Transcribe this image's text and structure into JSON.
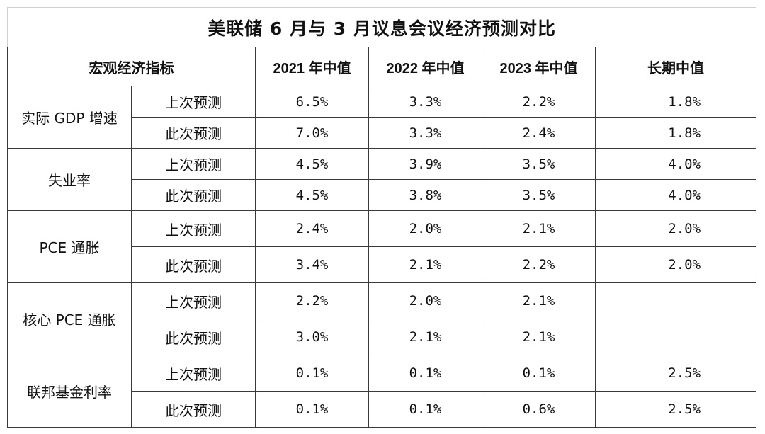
{
  "table": {
    "title": "美联储 6 月与 3 月议息会议经济预测对比",
    "headers": {
      "indicator": "宏观经济指标",
      "col_2021": "2021 年中值",
      "col_2022": "2022 年中值",
      "col_2023": "2023 年中值",
      "col_long": "长期中值"
    },
    "groups": [
      {
        "name": "实际 GDP 增速",
        "rows": [
          {
            "kind": "上次预测",
            "y2021": "6.5%",
            "y2022": "3.3%",
            "y2023": "2.2%",
            "long": "1.8%"
          },
          {
            "kind": "此次预测",
            "y2021": "7.0%",
            "y2022": "3.3%",
            "y2023": "2.4%",
            "long": "1.8%"
          }
        ]
      },
      {
        "name": "失业率",
        "rows": [
          {
            "kind": "上次预测",
            "y2021": "4.5%",
            "y2022": "3.9%",
            "y2023": "3.5%",
            "long": "4.0%"
          },
          {
            "kind": "此次预测",
            "y2021": "4.5%",
            "y2022": "3.8%",
            "y2023": "3.5%",
            "long": "4.0%"
          }
        ]
      },
      {
        "name": "PCE 通胀",
        "rows": [
          {
            "kind": "上次预测",
            "y2021": "2.4%",
            "y2022": "2.0%",
            "y2023": "2.1%",
            "long": "2.0%"
          },
          {
            "kind": "此次预测",
            "y2021": "3.4%",
            "y2022": "2.1%",
            "y2023": "2.2%",
            "long": "2.0%"
          }
        ]
      },
      {
        "name": "核心 PCE 通胀",
        "rows": [
          {
            "kind": "上次预测",
            "y2021": "2.2%",
            "y2022": "2.0%",
            "y2023": "2.1%",
            "long": ""
          },
          {
            "kind": "此次预测",
            "y2021": "3.0%",
            "y2022": "2.1%",
            "y2023": "2.1%",
            "long": ""
          }
        ]
      },
      {
        "name": "联邦基金利率",
        "rows": [
          {
            "kind": "上次预测",
            "y2021": "0.1%",
            "y2022": "0.1%",
            "y2023": "0.1%",
            "long": "2.5%"
          },
          {
            "kind": "此次预测",
            "y2021": "0.1%",
            "y2022": "0.1%",
            "y2023": "0.6%",
            "long": "2.5%"
          }
        ]
      }
    ]
  }
}
